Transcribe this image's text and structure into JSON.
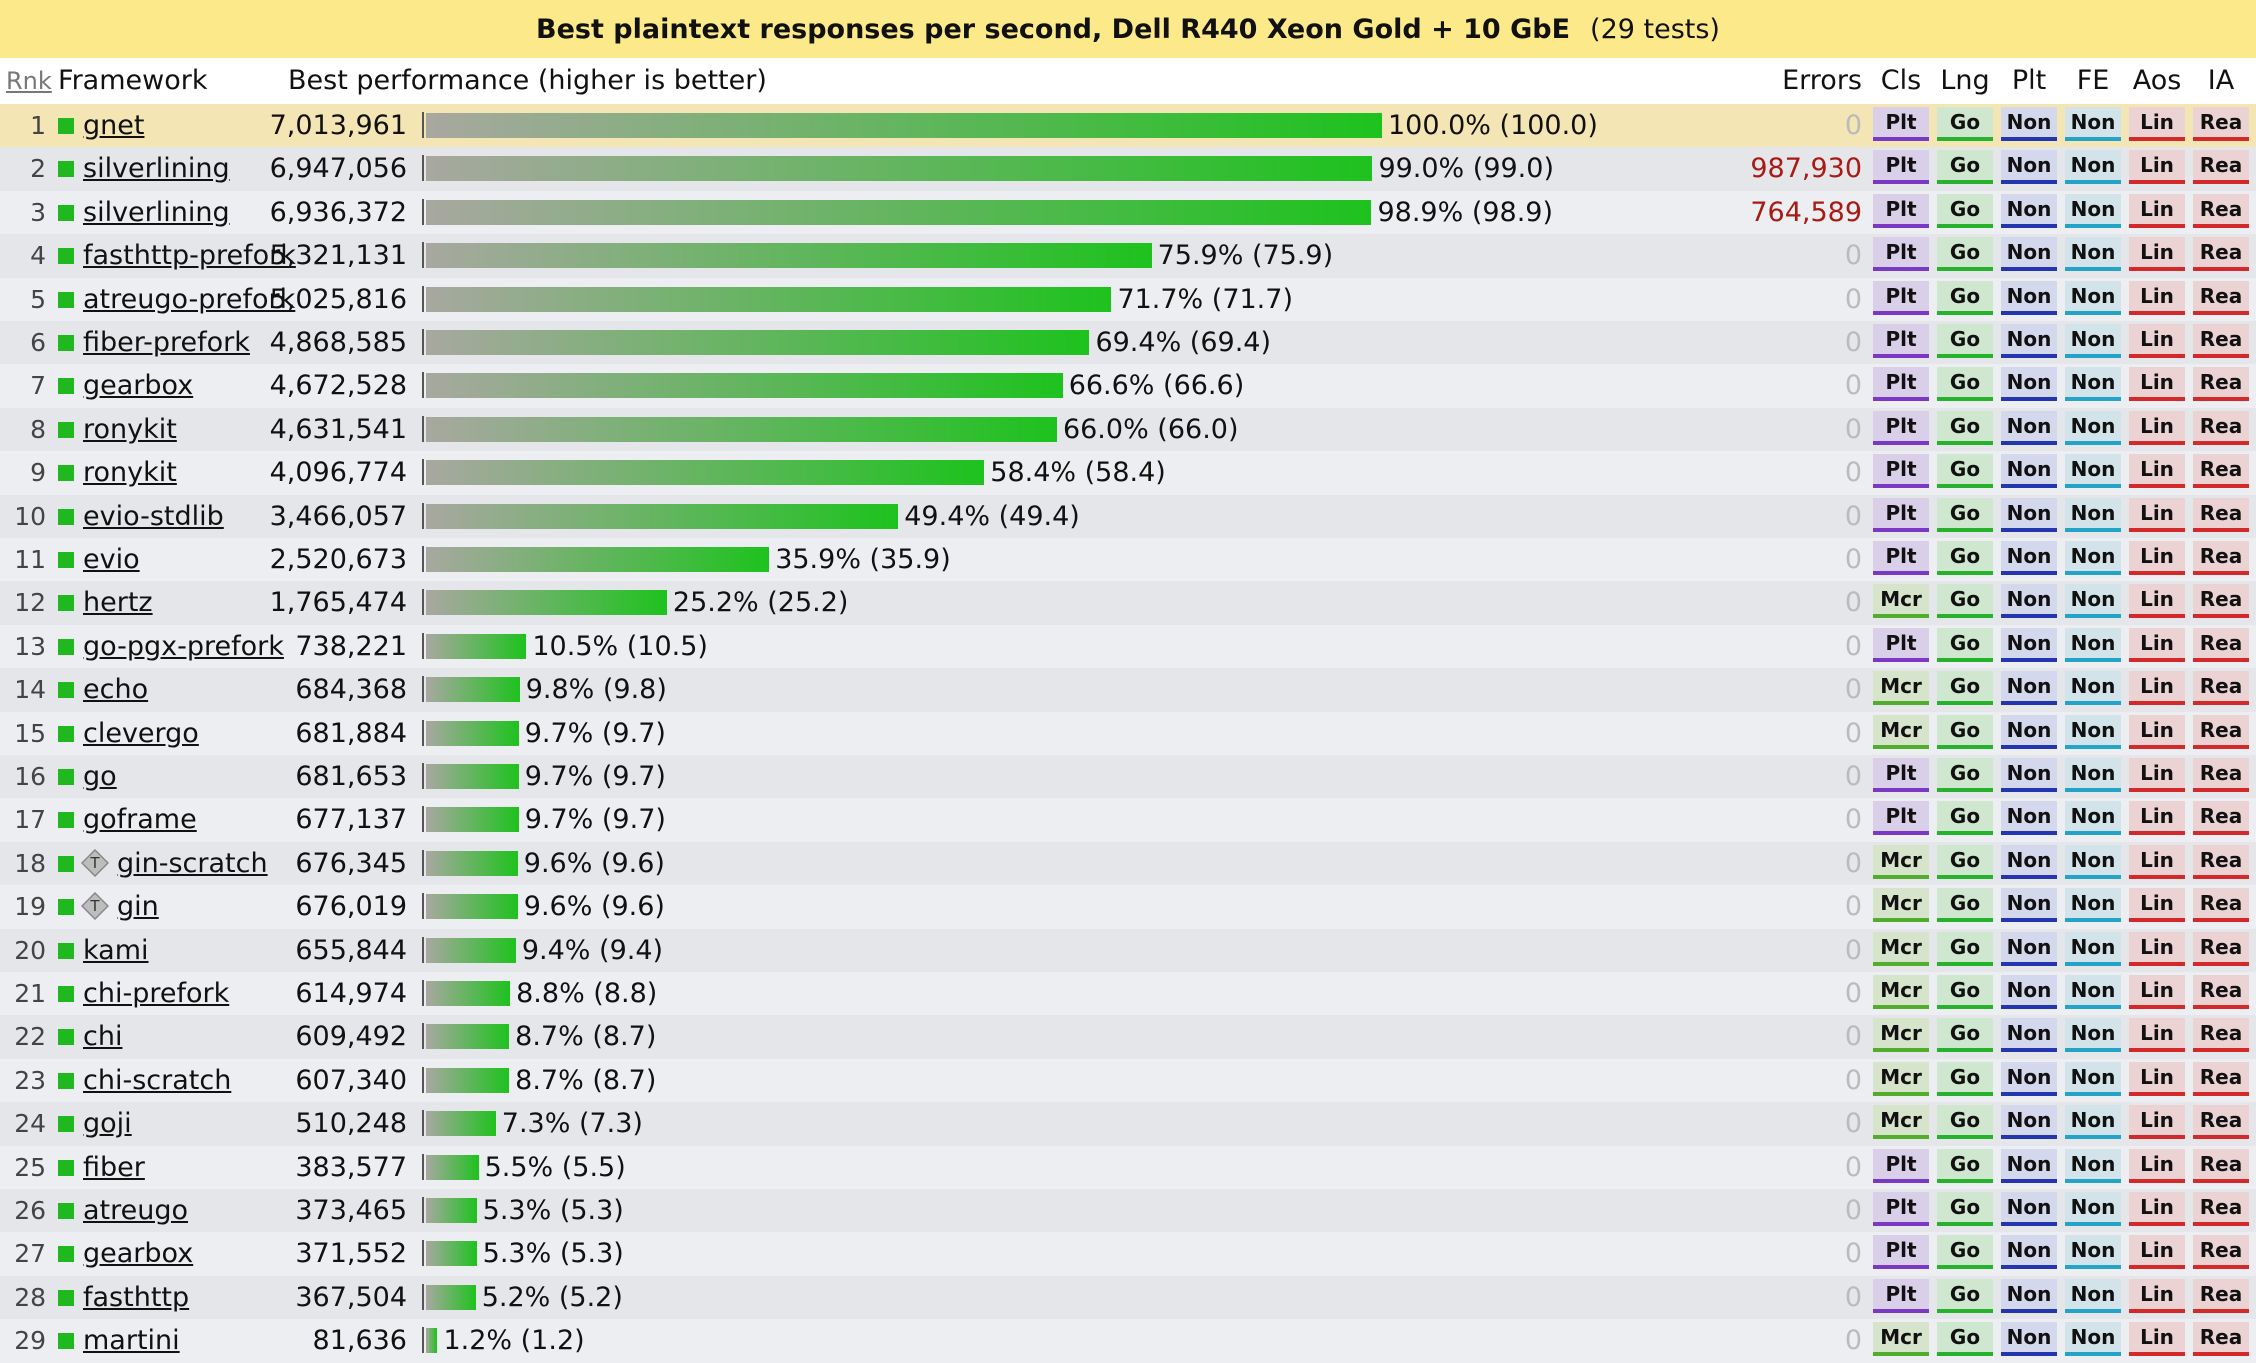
{
  "title": {
    "main": "Best plaintext responses per second, Dell R440 Xeon Gold + 10 GbE",
    "count": "(29 tests)"
  },
  "headers": {
    "rank": "Rnk",
    "framework": "Framework",
    "performance": "Best performance (higher is better)",
    "errors": "Errors",
    "cls": "Cls",
    "lng": "Lng",
    "plt": "Plt",
    "fe": "FE",
    "aos": "Aos",
    "ia": "IA"
  },
  "colors": {
    "swatch": "#1fb81f",
    "error_text": "#a81a14",
    "badges": {
      "Plt": {
        "bg": "#d9cfe8",
        "line": "#7a38c4"
      },
      "Mcr": {
        "bg": "#d7e4cc",
        "line": "#52ad2c"
      },
      "Go": {
        "bg": "#cfe6cf",
        "line": "#27b22e"
      },
      "Non": {
        "bg": "#d4d8ec",
        "line": "#2435b0"
      },
      "Non2": {
        "bg": "#d2e4ea",
        "line": "#23a4c6"
      },
      "Lin": {
        "bg": "#ecd3d3",
        "line": "#d22a2a"
      },
      "Rea": {
        "bg": "#ecd3d3",
        "line": "#d22a2a"
      }
    }
  },
  "rows": [
    {
      "rank": "1",
      "name": "gnet",
      "value": "7,013,961",
      "pct": 100.0,
      "pct_label": "100.0% (100.0)",
      "errors": "0",
      "cls": "Plt",
      "lng": "Go",
      "plt": "Non",
      "fe": "Non",
      "aos": "Lin",
      "ia": "Rea"
    },
    {
      "rank": "2",
      "name": "silverlining",
      "value": "6,947,056",
      "pct": 99.0,
      "pct_label": "99.0% (99.0)",
      "errors": "987,930",
      "cls": "Plt",
      "lng": "Go",
      "plt": "Non",
      "fe": "Non",
      "aos": "Lin",
      "ia": "Rea"
    },
    {
      "rank": "3",
      "name": "silverlining",
      "value": "6,936,372",
      "pct": 98.9,
      "pct_label": "98.9% (98.9)",
      "errors": "764,589",
      "cls": "Plt",
      "lng": "Go",
      "plt": "Non",
      "fe": "Non",
      "aos": "Lin",
      "ia": "Rea"
    },
    {
      "rank": "4",
      "name": "fasthttp-prefork",
      "value": "5,321,131",
      "pct": 75.9,
      "pct_label": "75.9% (75.9)",
      "errors": "0",
      "cls": "Plt",
      "lng": "Go",
      "plt": "Non",
      "fe": "Non",
      "aos": "Lin",
      "ia": "Rea"
    },
    {
      "rank": "5",
      "name": "atreugo-prefork",
      "value": "5,025,816",
      "pct": 71.7,
      "pct_label": "71.7% (71.7)",
      "errors": "0",
      "cls": "Plt",
      "lng": "Go",
      "plt": "Non",
      "fe": "Non",
      "aos": "Lin",
      "ia": "Rea"
    },
    {
      "rank": "6",
      "name": "fiber-prefork",
      "value": "4,868,585",
      "pct": 69.4,
      "pct_label": "69.4% (69.4)",
      "errors": "0",
      "cls": "Plt",
      "lng": "Go",
      "plt": "Non",
      "fe": "Non",
      "aos": "Lin",
      "ia": "Rea"
    },
    {
      "rank": "7",
      "name": "gearbox",
      "value": "4,672,528",
      "pct": 66.6,
      "pct_label": "66.6% (66.6)",
      "errors": "0",
      "cls": "Plt",
      "lng": "Go",
      "plt": "Non",
      "fe": "Non",
      "aos": "Lin",
      "ia": "Rea"
    },
    {
      "rank": "8",
      "name": "ronykit",
      "value": "4,631,541",
      "pct": 66.0,
      "pct_label": "66.0% (66.0)",
      "errors": "0",
      "cls": "Plt",
      "lng": "Go",
      "plt": "Non",
      "fe": "Non",
      "aos": "Lin",
      "ia": "Rea"
    },
    {
      "rank": "9",
      "name": "ronykit",
      "value": "4,096,774",
      "pct": 58.4,
      "pct_label": "58.4% (58.4)",
      "errors": "0",
      "cls": "Plt",
      "lng": "Go",
      "plt": "Non",
      "fe": "Non",
      "aos": "Lin",
      "ia": "Rea"
    },
    {
      "rank": "10",
      "name": "evio-stdlib",
      "value": "3,466,057",
      "pct": 49.4,
      "pct_label": "49.4% (49.4)",
      "errors": "0",
      "cls": "Plt",
      "lng": "Go",
      "plt": "Non",
      "fe": "Non",
      "aos": "Lin",
      "ia": "Rea"
    },
    {
      "rank": "11",
      "name": "evio",
      "value": "2,520,673",
      "pct": 35.9,
      "pct_label": "35.9% (35.9)",
      "errors": "0",
      "cls": "Plt",
      "lng": "Go",
      "plt": "Non",
      "fe": "Non",
      "aos": "Lin",
      "ia": "Rea"
    },
    {
      "rank": "12",
      "name": "hertz",
      "value": "1,765,474",
      "pct": 25.2,
      "pct_label": "25.2% (25.2)",
      "errors": "0",
      "cls": "Mcr",
      "lng": "Go",
      "plt": "Non",
      "fe": "Non",
      "aos": "Lin",
      "ia": "Rea"
    },
    {
      "rank": "13",
      "name": "go-pgx-prefork",
      "value": "738,221",
      "pct": 10.5,
      "pct_label": "10.5% (10.5)",
      "errors": "0",
      "cls": "Plt",
      "lng": "Go",
      "plt": "Non",
      "fe": "Non",
      "aos": "Lin",
      "ia": "Rea"
    },
    {
      "rank": "14",
      "name": "echo",
      "value": "684,368",
      "pct": 9.8,
      "pct_label": "9.8% (9.8)",
      "errors": "0",
      "cls": "Mcr",
      "lng": "Go",
      "plt": "Non",
      "fe": "Non",
      "aos": "Lin",
      "ia": "Rea"
    },
    {
      "rank": "15",
      "name": "clevergo",
      "value": "681,884",
      "pct": 9.7,
      "pct_label": "9.7% (9.7)",
      "errors": "0",
      "cls": "Mcr",
      "lng": "Go",
      "plt": "Non",
      "fe": "Non",
      "aos": "Lin",
      "ia": "Rea"
    },
    {
      "rank": "16",
      "name": "go",
      "value": "681,653",
      "pct": 9.7,
      "pct_label": "9.7% (9.7)",
      "errors": "0",
      "cls": "Plt",
      "lng": "Go",
      "plt": "Non",
      "fe": "Non",
      "aos": "Lin",
      "ia": "Rea"
    },
    {
      "rank": "17",
      "name": "goframe",
      "value": "677,137",
      "pct": 9.7,
      "pct_label": "9.7% (9.7)",
      "errors": "0",
      "cls": "Plt",
      "lng": "Go",
      "plt": "Non",
      "fe": "Non",
      "aos": "Lin",
      "ia": "Rea"
    },
    {
      "rank": "18",
      "name": "gin-scratch",
      "value": "676,345",
      "pct": 9.6,
      "pct_label": "9.6% (9.6)",
      "errors": "0",
      "cls": "Mcr",
      "lng": "Go",
      "plt": "Non",
      "fe": "Non",
      "aos": "Lin",
      "ia": "Rea",
      "tier_icon": "T"
    },
    {
      "rank": "19",
      "name": "gin",
      "value": "676,019",
      "pct": 9.6,
      "pct_label": "9.6% (9.6)",
      "errors": "0",
      "cls": "Mcr",
      "lng": "Go",
      "plt": "Non",
      "fe": "Non",
      "aos": "Lin",
      "ia": "Rea",
      "tier_icon": "T"
    },
    {
      "rank": "20",
      "name": "kami",
      "value": "655,844",
      "pct": 9.4,
      "pct_label": "9.4% (9.4)",
      "errors": "0",
      "cls": "Mcr",
      "lng": "Go",
      "plt": "Non",
      "fe": "Non",
      "aos": "Lin",
      "ia": "Rea"
    },
    {
      "rank": "21",
      "name": "chi-prefork",
      "value": "614,974",
      "pct": 8.8,
      "pct_label": "8.8% (8.8)",
      "errors": "0",
      "cls": "Mcr",
      "lng": "Go",
      "plt": "Non",
      "fe": "Non",
      "aos": "Lin",
      "ia": "Rea"
    },
    {
      "rank": "22",
      "name": "chi",
      "value": "609,492",
      "pct": 8.7,
      "pct_label": "8.7% (8.7)",
      "errors": "0",
      "cls": "Mcr",
      "lng": "Go",
      "plt": "Non",
      "fe": "Non",
      "aos": "Lin",
      "ia": "Rea"
    },
    {
      "rank": "23",
      "name": "chi-scratch",
      "value": "607,340",
      "pct": 8.7,
      "pct_label": "8.7% (8.7)",
      "errors": "0",
      "cls": "Mcr",
      "lng": "Go",
      "plt": "Non",
      "fe": "Non",
      "aos": "Lin",
      "ia": "Rea"
    },
    {
      "rank": "24",
      "name": "goji",
      "value": "510,248",
      "pct": 7.3,
      "pct_label": "7.3% (7.3)",
      "errors": "0",
      "cls": "Mcr",
      "lng": "Go",
      "plt": "Non",
      "fe": "Non",
      "aos": "Lin",
      "ia": "Rea"
    },
    {
      "rank": "25",
      "name": "fiber",
      "value": "383,577",
      "pct": 5.5,
      "pct_label": "5.5% (5.5)",
      "errors": "0",
      "cls": "Plt",
      "lng": "Go",
      "plt": "Non",
      "fe": "Non",
      "aos": "Lin",
      "ia": "Rea"
    },
    {
      "rank": "26",
      "name": "atreugo",
      "value": "373,465",
      "pct": 5.3,
      "pct_label": "5.3% (5.3)",
      "errors": "0",
      "cls": "Plt",
      "lng": "Go",
      "plt": "Non",
      "fe": "Non",
      "aos": "Lin",
      "ia": "Rea"
    },
    {
      "rank": "27",
      "name": "gearbox",
      "value": "371,552",
      "pct": 5.3,
      "pct_label": "5.3% (5.3)",
      "errors": "0",
      "cls": "Plt",
      "lng": "Go",
      "plt": "Non",
      "fe": "Non",
      "aos": "Lin",
      "ia": "Rea"
    },
    {
      "rank": "28",
      "name": "fasthttp",
      "value": "367,504",
      "pct": 5.2,
      "pct_label": "5.2% (5.2)",
      "errors": "0",
      "cls": "Plt",
      "lng": "Go",
      "plt": "Non",
      "fe": "Non",
      "aos": "Lin",
      "ia": "Rea"
    },
    {
      "rank": "29",
      "name": "martini",
      "value": "81,636",
      "pct": 1.2,
      "pct_label": "1.2% (1.2)",
      "errors": "0",
      "cls": "Mcr",
      "lng": "Go",
      "plt": "Non",
      "fe": "Non",
      "aos": "Lin",
      "ia": "Rea"
    }
  ]
}
